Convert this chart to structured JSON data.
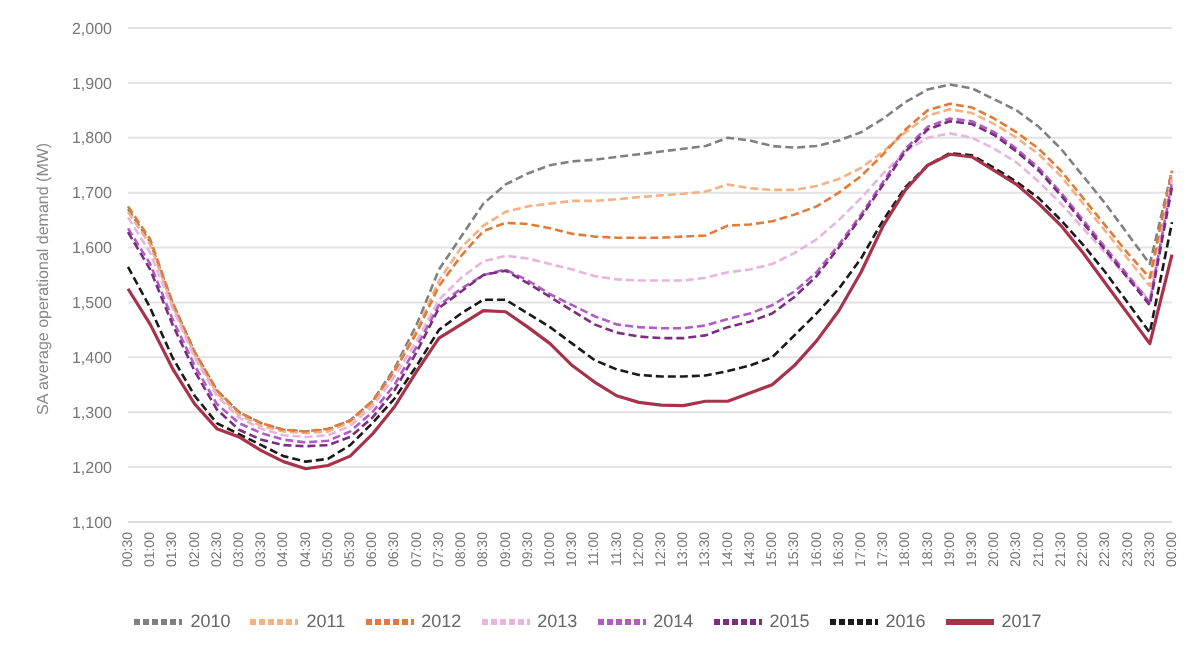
{
  "chart_data": {
    "type": "line",
    "ylabel": "SA average operational demand (MW)",
    "categories": [
      "00:30",
      "01:00",
      "01:30",
      "02:00",
      "02:30",
      "03:00",
      "03:30",
      "04:00",
      "04:30",
      "05:00",
      "05:30",
      "06:00",
      "06:30",
      "07:00",
      "07:30",
      "08:00",
      "08:30",
      "09:00",
      "09:30",
      "10:00",
      "10:30",
      "11:00",
      "11:30",
      "12:00",
      "12:30",
      "13:00",
      "13:30",
      "14:00",
      "14:30",
      "15:00",
      "15:30",
      "16:00",
      "16:30",
      "17:00",
      "17:30",
      "18:00",
      "18:30",
      "19:00",
      "19:30",
      "20:00",
      "20:30",
      "21:00",
      "21:30",
      "22:00",
      "22:30",
      "23:00",
      "23:30",
      "00:00"
    ],
    "ylim": [
      1100,
      2000
    ],
    "yticks": [
      {
        "value": 1100,
        "label": "1,100"
      },
      {
        "value": 1200,
        "label": "1,200"
      },
      {
        "value": 1300,
        "label": "1,300"
      },
      {
        "value": 1400,
        "label": "1,400"
      },
      {
        "value": 1500,
        "label": "1,500"
      },
      {
        "value": 1600,
        "label": "1,600"
      },
      {
        "value": 1700,
        "label": "1,700"
      },
      {
        "value": 1800,
        "label": "1,800"
      },
      {
        "value": 1900,
        "label": "1,900"
      },
      {
        "value": 2000,
        "label": "2,000"
      }
    ],
    "grid": "y",
    "legend": "bottom",
    "marker": "none",
    "series": [
      {
        "name": "2010",
        "color": "#808080",
        "line_style": "dashed",
        "values": [
          1670,
          1610,
          1500,
          1410,
          1340,
          1300,
          1280,
          1268,
          1265,
          1268,
          1285,
          1320,
          1380,
          1460,
          1560,
          1620,
          1680,
          1715,
          1735,
          1750,
          1757,
          1760,
          1765,
          1770,
          1775,
          1780,
          1785,
          1800,
          1795,
          1785,
          1782,
          1785,
          1795,
          1810,
          1835,
          1865,
          1888,
          1897,
          1890,
          1870,
          1850,
          1820,
          1780,
          1730,
          1680,
          1625,
          1570,
          1740
        ]
      },
      {
        "name": "2011",
        "color": "#f4b183",
        "line_style": "dashed",
        "values": [
          1665,
          1605,
          1495,
          1405,
          1335,
          1295,
          1275,
          1265,
          1262,
          1265,
          1282,
          1315,
          1375,
          1450,
          1540,
          1600,
          1640,
          1665,
          1675,
          1680,
          1685,
          1685,
          1688,
          1692,
          1695,
          1698,
          1702,
          1715,
          1708,
          1705,
          1705,
          1712,
          1725,
          1745,
          1775,
          1810,
          1840,
          1852,
          1845,
          1825,
          1800,
          1770,
          1730,
          1680,
          1630,
          1580,
          1530,
          1735
        ]
      },
      {
        "name": "2012",
        "color": "#e07b39",
        "line_style": "dashed",
        "values": [
          1675,
          1615,
          1500,
          1410,
          1340,
          1300,
          1280,
          1268,
          1265,
          1270,
          1285,
          1320,
          1375,
          1445,
          1530,
          1585,
          1630,
          1645,
          1643,
          1635,
          1625,
          1620,
          1618,
          1618,
          1618,
          1620,
          1622,
          1640,
          1642,
          1648,
          1660,
          1675,
          1700,
          1730,
          1770,
          1815,
          1850,
          1862,
          1855,
          1835,
          1810,
          1780,
          1740,
          1690,
          1640,
          1590,
          1545,
          1740
        ]
      },
      {
        "name": "2013",
        "color": "#e8b4e0",
        "line_style": "dashed",
        "values": [
          1655,
          1590,
          1490,
          1400,
          1330,
          1290,
          1270,
          1258,
          1255,
          1258,
          1275,
          1310,
          1365,
          1430,
          1505,
          1545,
          1575,
          1585,
          1580,
          1570,
          1560,
          1548,
          1542,
          1540,
          1540,
          1540,
          1545,
          1555,
          1560,
          1570,
          1590,
          1615,
          1650,
          1690,
          1735,
          1775,
          1800,
          1808,
          1800,
          1780,
          1755,
          1720,
          1680,
          1635,
          1590,
          1545,
          1505,
          1725
        ]
      },
      {
        "name": "2014",
        "color": "#b05cc4",
        "line_style": "dashed",
        "values": [
          1635,
          1570,
          1470,
          1385,
          1315,
          1280,
          1262,
          1250,
          1245,
          1248,
          1265,
          1300,
          1350,
          1420,
          1495,
          1525,
          1550,
          1560,
          1540,
          1515,
          1495,
          1475,
          1460,
          1455,
          1453,
          1453,
          1458,
          1470,
          1480,
          1495,
          1520,
          1555,
          1605,
          1660,
          1720,
          1780,
          1820,
          1835,
          1830,
          1810,
          1780,
          1745,
          1700,
          1650,
          1600,
          1550,
          1500,
          1720
        ]
      },
      {
        "name": "2015",
        "color": "#7b2d80",
        "line_style": "dashed",
        "values": [
          1628,
          1560,
          1460,
          1375,
          1305,
          1268,
          1250,
          1240,
          1238,
          1240,
          1255,
          1290,
          1340,
          1410,
          1490,
          1520,
          1550,
          1558,
          1535,
          1510,
          1485,
          1460,
          1445,
          1438,
          1435,
          1435,
          1440,
          1455,
          1465,
          1480,
          1510,
          1548,
          1600,
          1655,
          1715,
          1775,
          1815,
          1830,
          1825,
          1805,
          1775,
          1740,
          1695,
          1645,
          1595,
          1545,
          1495,
          1710
        ]
      },
      {
        "name": "2016",
        "color": "#1a1a1a",
        "line_style": "dashed",
        "values": [
          1565,
          1490,
          1400,
          1330,
          1280,
          1260,
          1240,
          1220,
          1210,
          1215,
          1240,
          1280,
          1325,
          1385,
          1450,
          1480,
          1505,
          1505,
          1480,
          1455,
          1425,
          1395,
          1378,
          1368,
          1365,
          1365,
          1367,
          1375,
          1385,
          1400,
          1440,
          1480,
          1525,
          1580,
          1650,
          1710,
          1750,
          1772,
          1768,
          1745,
          1720,
          1690,
          1650,
          1605,
          1555,
          1500,
          1445,
          1646
        ]
      },
      {
        "name": "2017",
        "color": "#a8324a",
        "line_style": "solid",
        "values": [
          1525,
          1460,
          1380,
          1315,
          1270,
          1255,
          1230,
          1210,
          1197,
          1203,
          1220,
          1260,
          1310,
          1375,
          1435,
          1460,
          1485,
          1483,
          1455,
          1425,
          1385,
          1355,
          1330,
          1318,
          1313,
          1312,
          1320,
          1320,
          1335,
          1350,
          1385,
          1430,
          1485,
          1555,
          1640,
          1705,
          1750,
          1770,
          1765,
          1740,
          1715,
          1680,
          1640,
          1590,
          1535,
          1480,
          1425,
          1587
        ]
      }
    ]
  }
}
